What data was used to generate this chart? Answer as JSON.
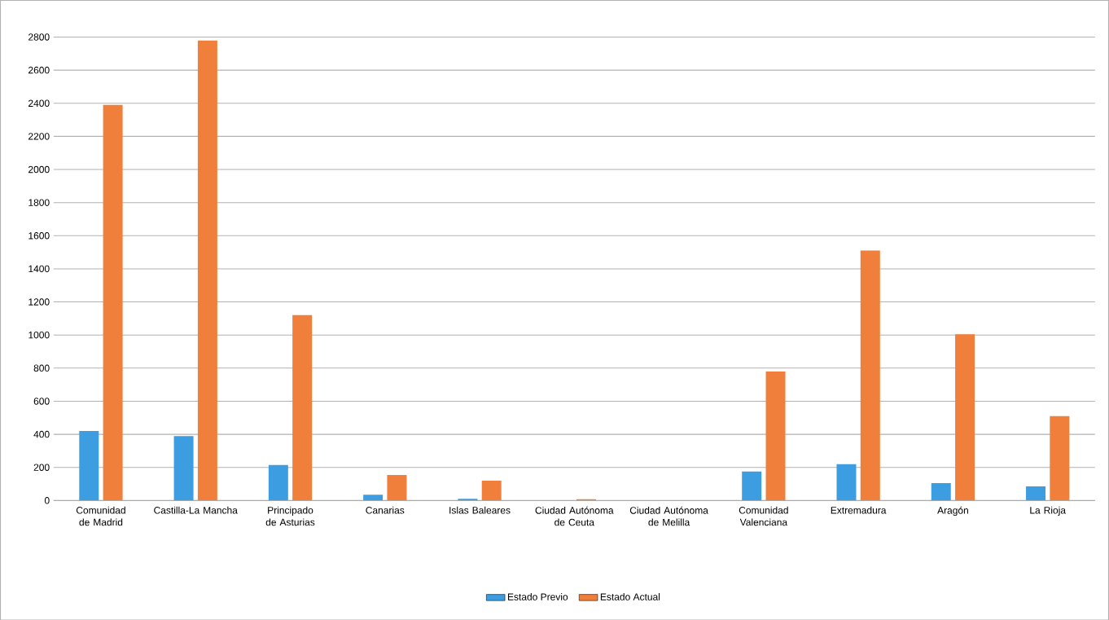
{
  "chart_data": {
    "type": "bar",
    "categories": [
      "Comunidad de Madrid",
      "Castilla-La Mancha",
      "Principado de Asturias",
      "Canarias",
      "Islas Baleares",
      "Ciudad Autónoma de Ceuta",
      "Ciudad Autónoma de Melilla",
      "Comunidad Valenciana",
      "Extremadura",
      "Aragón",
      "La Rioja"
    ],
    "series": [
      {
        "name": "Estado Previo",
        "color": "#3c9de0",
        "values": [
          420,
          390,
          215,
          35,
          10,
          0,
          0,
          175,
          220,
          105,
          85
        ]
      },
      {
        "name": "Estado Actual",
        "color": "#ef7f3a",
        "values": [
          2390,
          2780,
          1120,
          155,
          120,
          8,
          0,
          780,
          1510,
          1005,
          510
        ]
      }
    ],
    "ylim": [
      0,
      2800
    ],
    "yticks": [
      0,
      200,
      400,
      600,
      800,
      1000,
      1200,
      1400,
      1600,
      1800,
      2000,
      2200,
      2400,
      2600,
      2800
    ],
    "grid": "y",
    "legend": "bottom"
  }
}
